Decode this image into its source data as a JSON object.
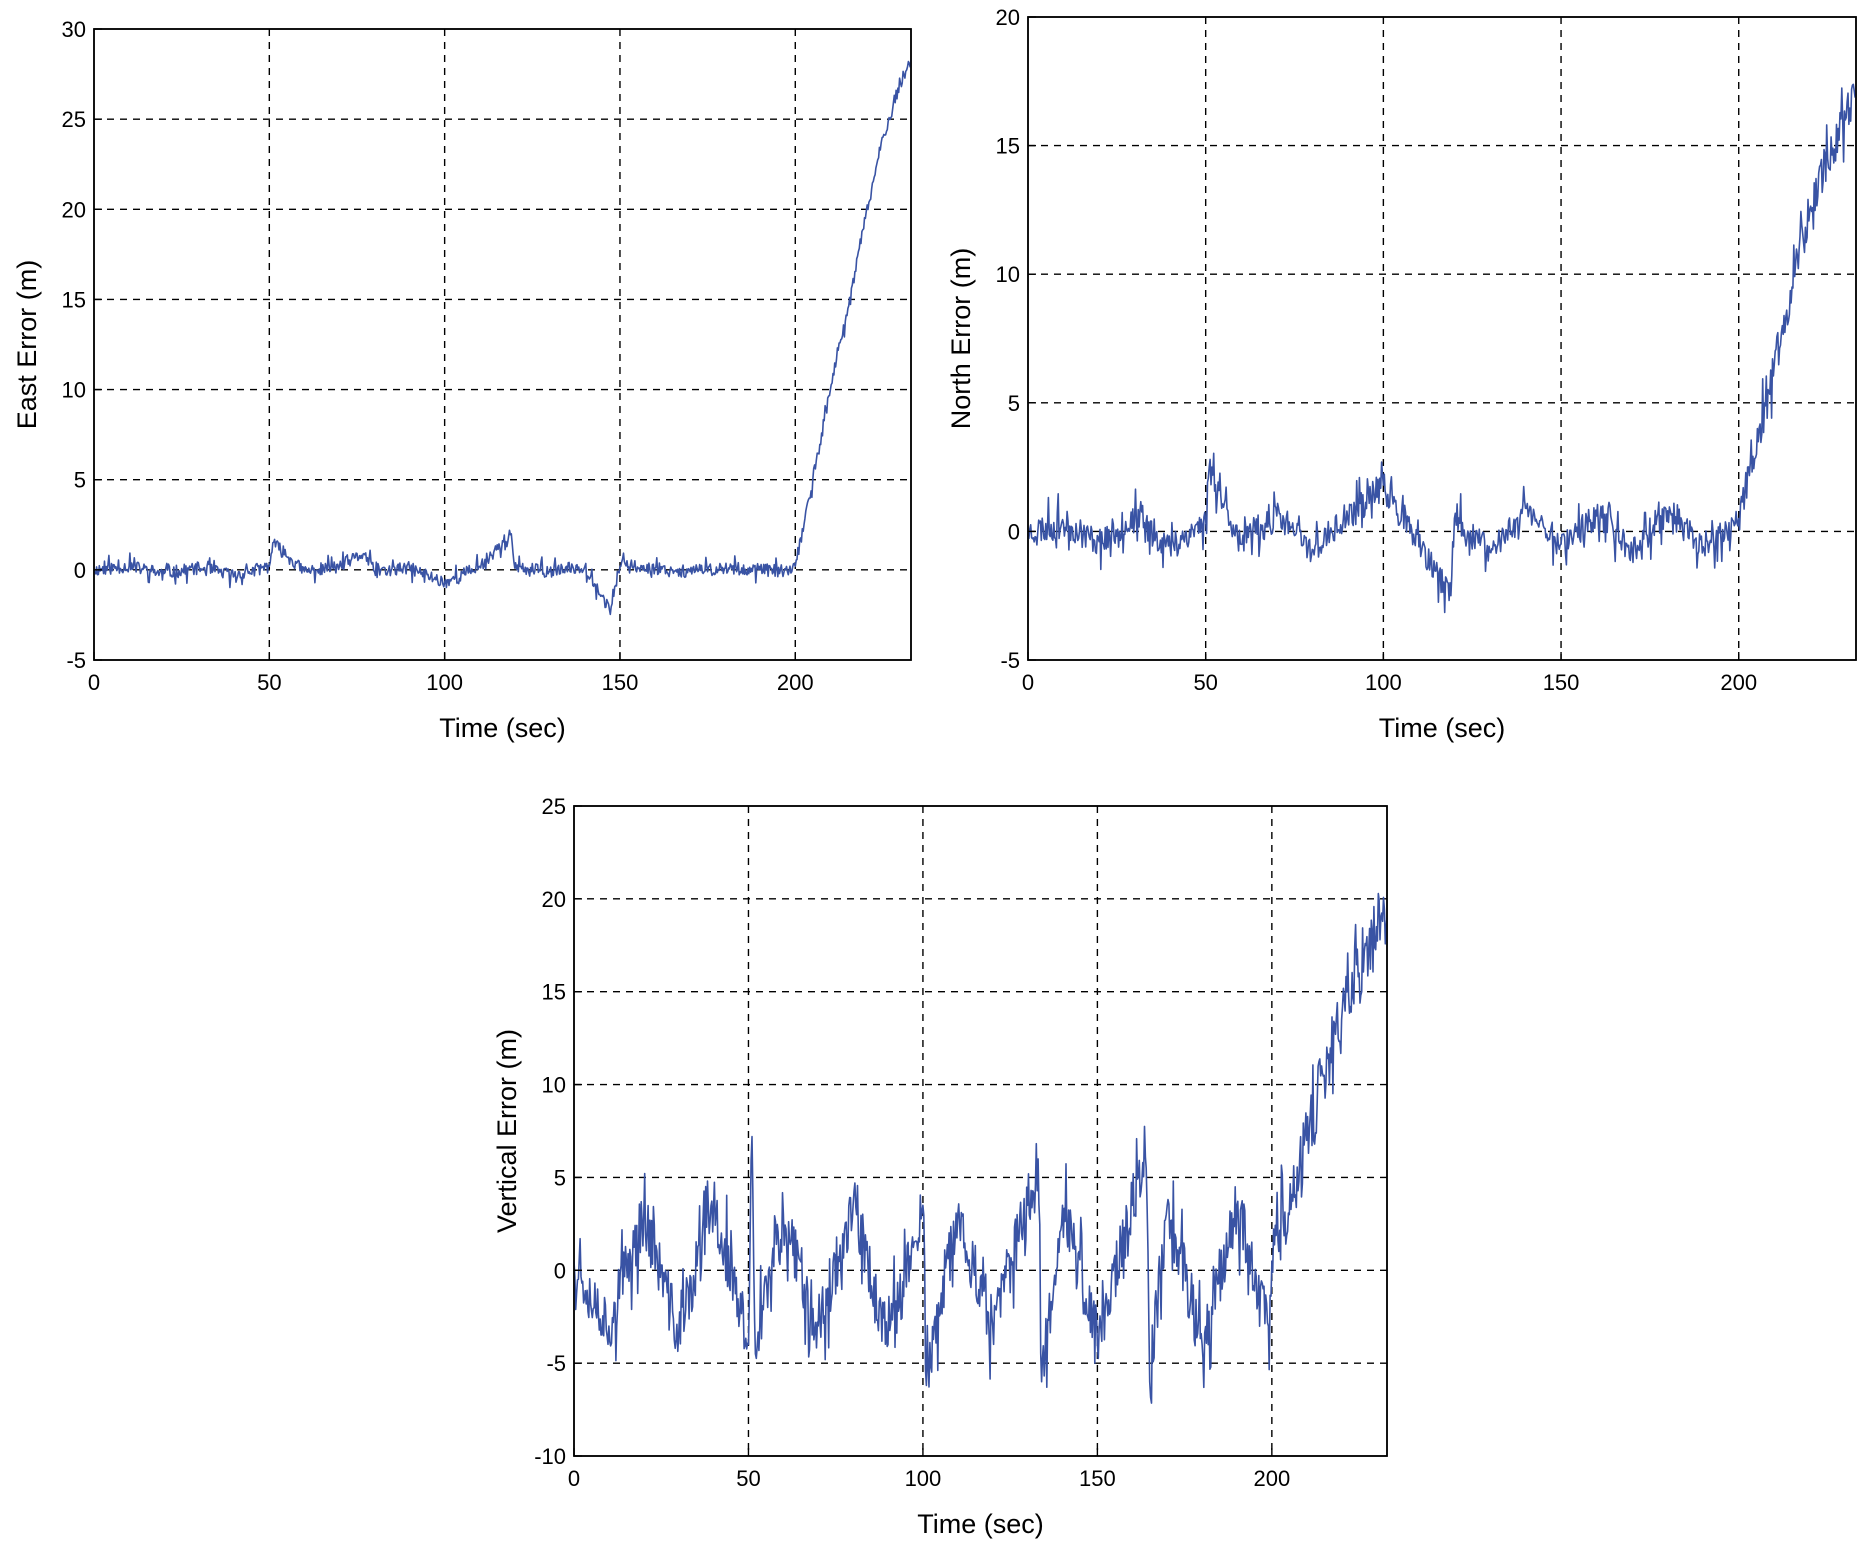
{
  "chart_data": [
    {
      "id": "east",
      "type": "line",
      "title": "",
      "xlabel": "Time (sec)",
      "ylabel": "East Error (m)",
      "xlim": [
        0,
        233
      ],
      "ylim": [
        -5,
        30
      ],
      "xticks": [
        0,
        50,
        100,
        150,
        200
      ],
      "xtick_labels": [
        "0",
        "50",
        "100",
        "150",
        "200"
      ],
      "yticks": [
        -5,
        0,
        5,
        10,
        15,
        20,
        25,
        30
      ],
      "ytick_labels": [
        "-5",
        "0",
        "5",
        "10",
        "15",
        "20",
        "25",
        "30"
      ],
      "grid": true,
      "series": [
        {
          "color": "#3953a4",
          "x": [
            0,
            10,
            20,
            30,
            40,
            50,
            51,
            60,
            70,
            77,
            80,
            90,
            100,
            110,
            119,
            120,
            130,
            140,
            147,
            150,
            160,
            170,
            180,
            190,
            199,
            200,
            205,
            210,
            215,
            220,
            225,
            230,
            233
          ],
          "y": [
            0,
            0.2,
            -0.2,
            0.1,
            -0.3,
            0.2,
            1.5,
            -0.1,
            0.2,
            0.9,
            -0.1,
            0.1,
            -0.7,
            0.2,
            2.0,
            0.1,
            -0.1,
            0.2,
            -2.2,
            0.2,
            0.1,
            -0.1,
            0.1,
            0.0,
            -0.1,
            0.2,
            5.0,
            10.0,
            14.5,
            19.5,
            24.0,
            27.0,
            28.3
          ]
        }
      ]
    },
    {
      "id": "north",
      "type": "line",
      "title": "",
      "xlabel": "Time (sec)",
      "ylabel": "North Error (m)",
      "xlim": [
        0,
        233
      ],
      "ylim": [
        -5,
        20
      ],
      "xticks": [
        0,
        50,
        100,
        150,
        200
      ],
      "xtick_labels": [
        "0",
        "50",
        "100",
        "150",
        "200"
      ],
      "yticks": [
        -5,
        0,
        5,
        10,
        15,
        20
      ],
      "ytick_labels": [
        "-5",
        "0",
        "5",
        "10",
        "15",
        "20"
      ],
      "grid": true,
      "series": [
        {
          "color": "#3953a4",
          "x": [
            0,
            10,
            20,
            30,
            40,
            50,
            51,
            60,
            70,
            80,
            90,
            100,
            110,
            119,
            120,
            130,
            140,
            150,
            160,
            170,
            180,
            190,
            199,
            200,
            205,
            210,
            215,
            220,
            225,
            230,
            233
          ],
          "y": [
            0,
            0.3,
            -0.4,
            0.5,
            -0.6,
            0.4,
            2.5,
            -0.5,
            0.6,
            -0.7,
            0.5,
            1.8,
            -0.6,
            -2.5,
            0.5,
            -0.8,
            0.9,
            -0.5,
            0.6,
            -0.7,
            0.8,
            -0.6,
            0.3,
            0.5,
            3.0,
            6.5,
            9.5,
            12.5,
            14.5,
            16.0,
            17.0
          ]
        }
      ]
    },
    {
      "id": "vertical",
      "type": "line",
      "title": "",
      "xlabel": "Time (sec)",
      "ylabel": "Vertical Error (m)",
      "xlim": [
        0,
        233
      ],
      "ylim": [
        -10,
        25
      ],
      "xticks": [
        0,
        50,
        100,
        150,
        200
      ],
      "xtick_labels": [
        "0",
        "50",
        "100",
        "150",
        "200"
      ],
      "yticks": [
        -10,
        -5,
        0,
        5,
        10,
        15,
        20,
        25
      ],
      "ytick_labels": [
        "-10",
        "-5",
        "0",
        "5",
        "10",
        "15",
        "20",
        "25"
      ],
      "grid": true,
      "series": [
        {
          "color": "#3953a4",
          "x": [
            0,
            10,
            20,
            30,
            40,
            50,
            51,
            52,
            60,
            70,
            80,
            90,
            100,
            101,
            110,
            120,
            130,
            133,
            134,
            140,
            150,
            160,
            164,
            165,
            170,
            180,
            190,
            199,
            200,
            205,
            210,
            215,
            220,
            225,
            230,
            233
          ],
          "y": [
            0.5,
            -3.0,
            3.0,
            -3.5,
            3.5,
            -4.0,
            7.2,
            -4.5,
            3.0,
            -3.0,
            3.5,
            -4.0,
            3.5,
            -6.2,
            3.0,
            -3.0,
            3.5,
            6.0,
            -6.0,
            3.5,
            -4.0,
            3.5,
            5.5,
            -6.0,
            3.5,
            -4.0,
            3.5,
            -3.0,
            0.5,
            3.0,
            7.0,
            10.5,
            13.5,
            16.0,
            18.5,
            19.0
          ]
        }
      ]
    }
  ]
}
